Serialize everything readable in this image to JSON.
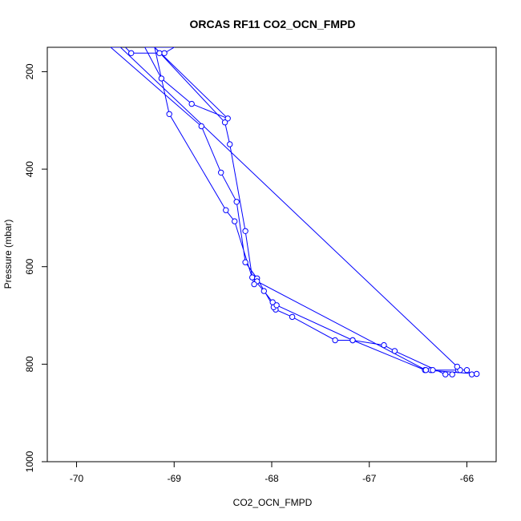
{
  "chart_data": {
    "type": "line",
    "title": "ORCAS RF11 CO2_OCN_FMPD",
    "xlabel": "CO2_OCN_FMPD",
    "ylabel": "Pressure (mbar)",
    "xlim": [
      -70.3,
      -65.7
    ],
    "ylim": [
      1000,
      150
    ],
    "y_reversed": true,
    "x_ticks": [
      -70,
      -69,
      -68,
      -67,
      -66
    ],
    "x_tick_labels": [
      "-70",
      "-69",
      "-68",
      "-67",
      "-66"
    ],
    "y_ticks": [
      200,
      400,
      600,
      800,
      1000
    ],
    "y_tick_labels": [
      "200",
      "400",
      "600",
      "800",
      "1000"
    ],
    "line_color": "#0000ff",
    "marker": "open-circle",
    "grid": false,
    "legend": "none",
    "series": [
      {
        "points": [
          [
            -69.5,
            150
          ],
          [
            -69.44,
            162
          ],
          [
            -69.15,
            162
          ],
          [
            -69.1,
            162
          ],
          [
            -69.0,
            150
          ],
          [
            -69.3,
            150
          ],
          [
            -69.13,
            214
          ],
          [
            -68.82,
            266
          ],
          [
            -68.45,
            296
          ],
          [
            -69.2,
            150
          ],
          [
            -68.48,
            304
          ],
          [
            -68.43,
            349
          ],
          [
            -68.27,
            527
          ],
          [
            -68.2,
            622
          ],
          [
            -68.08,
            650
          ],
          [
            -67.99,
            673
          ],
          [
            -67.96,
            688
          ],
          [
            -67.79,
            703
          ],
          [
            -67.35,
            751
          ],
          [
            -67.17,
            751
          ],
          [
            -66.85,
            761
          ],
          [
            -66.74,
            773
          ],
          [
            -66.22,
            821
          ],
          [
            -66.15,
            821
          ],
          [
            -66.09,
            812
          ],
          [
            -66.07,
            812
          ],
          [
            -66.1,
            805
          ],
          [
            -69.55,
            150
          ],
          [
            -69.65,
            150
          ],
          [
            -68.72,
            312
          ],
          [
            -68.52,
            407
          ],
          [
            -68.36,
            467
          ],
          [
            -68.27,
            591
          ],
          [
            -68.15,
            624
          ],
          [
            -67.98,
            683
          ],
          [
            -67.95,
            679
          ],
          [
            -67.17,
            751
          ],
          [
            -66.43,
            812
          ],
          [
            -66.37,
            812
          ],
          [
            -66.35,
            812
          ],
          [
            -66.0,
            812
          ],
          [
            -65.95,
            821
          ],
          [
            -65.9,
            820
          ],
          [
            -66.42,
            812
          ],
          [
            -68.15,
            630
          ],
          [
            -68.18,
            636
          ],
          [
            -68.38,
            507
          ],
          [
            -68.47,
            484
          ],
          [
            -69.05,
            287
          ],
          [
            -69.2,
            150
          ]
        ]
      }
    ]
  }
}
